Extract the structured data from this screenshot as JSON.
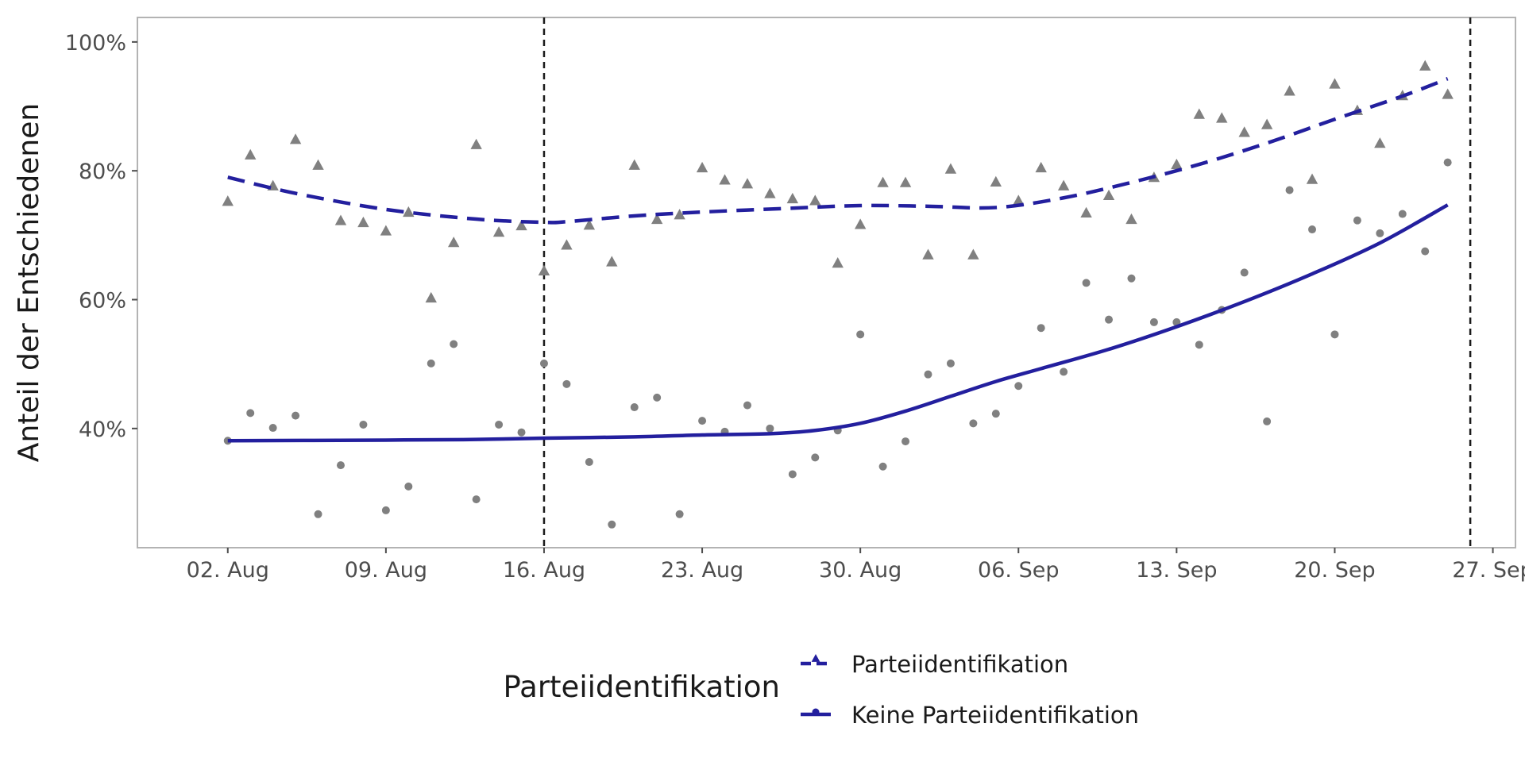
{
  "chart_data": {
    "type": "scatter",
    "title": "",
    "xlabel": "",
    "ylabel": "Anteil der Entschiedenen",
    "x_ticks": [
      "02. Aug",
      "09. Aug",
      "16. Aug",
      "23. Aug",
      "30. Aug",
      "06. Sep",
      "13. Sep",
      "20. Sep",
      "27. Sep"
    ],
    "y_ticks": [
      "40%",
      "60%",
      "80%",
      "100%"
    ],
    "xlim": [
      "2020-07-29",
      "2020-09-28"
    ],
    "ylim": [
      21.5,
      103.8
    ],
    "grid": false,
    "vlines": [
      "2020-08-16",
      "2020-09-26"
    ],
    "legend": {
      "title": "Parteiidentifikation",
      "position": "bottom",
      "entries": [
        "Parteiidentifikation",
        "Keine Parteiidentifikation"
      ]
    },
    "colors": {
      "points": "#808080",
      "lines": "#231f9e",
      "vlines": "#1a1a1a",
      "frame": "#b3b3b3"
    },
    "series": [
      {
        "name": "Parteiidentifikation",
        "marker": "triangle",
        "line_style": "dashed",
        "points": [
          [
            "2020-08-02",
            75.2
          ],
          [
            "2020-08-03",
            82.4
          ],
          [
            "2020-08-04",
            77.6
          ],
          [
            "2020-08-05",
            84.8
          ],
          [
            "2020-08-06",
            80.8
          ],
          [
            "2020-08-07",
            72.2
          ],
          [
            "2020-08-08",
            71.9
          ],
          [
            "2020-08-09",
            70.6
          ],
          [
            "2020-08-10",
            73.5
          ],
          [
            "2020-08-11",
            60.2
          ],
          [
            "2020-08-12",
            68.8
          ],
          [
            "2020-08-13",
            84.0
          ],
          [
            "2020-08-14",
            70.4
          ],
          [
            "2020-08-15",
            71.4
          ],
          [
            "2020-08-16",
            64.4
          ],
          [
            "2020-08-17",
            68.4
          ],
          [
            "2020-08-18",
            71.5
          ],
          [
            "2020-08-19",
            65.8
          ],
          [
            "2020-08-20",
            80.8
          ],
          [
            "2020-08-21",
            72.4
          ],
          [
            "2020-08-22",
            73.1
          ],
          [
            "2020-08-23",
            80.4
          ],
          [
            "2020-08-24",
            78.5
          ],
          [
            "2020-08-25",
            77.9
          ],
          [
            "2020-08-26",
            76.4
          ],
          [
            "2020-08-27",
            75.6
          ],
          [
            "2020-08-28",
            75.3
          ],
          [
            "2020-08-29",
            65.6
          ],
          [
            "2020-08-30",
            71.6
          ],
          [
            "2020-08-31",
            78.1
          ],
          [
            "2020-09-01",
            78.1
          ],
          [
            "2020-09-02",
            66.9
          ],
          [
            "2020-09-03",
            80.2
          ],
          [
            "2020-09-04",
            66.9
          ],
          [
            "2020-09-05",
            78.2
          ],
          [
            "2020-09-06",
            75.3
          ],
          [
            "2020-09-07",
            80.4
          ],
          [
            "2020-09-08",
            77.6
          ],
          [
            "2020-09-09",
            73.4
          ],
          [
            "2020-09-10",
            76.1
          ],
          [
            "2020-09-11",
            72.4
          ],
          [
            "2020-09-12",
            78.9
          ],
          [
            "2020-09-13",
            80.9
          ],
          [
            "2020-09-14",
            88.7
          ],
          [
            "2020-09-15",
            88.1
          ],
          [
            "2020-09-16",
            85.9
          ],
          [
            "2020-09-17",
            87.1
          ],
          [
            "2020-09-18",
            92.3
          ],
          [
            "2020-09-19",
            78.6
          ],
          [
            "2020-09-20",
            93.4
          ],
          [
            "2020-09-21",
            89.3
          ],
          [
            "2020-09-22",
            84.2
          ],
          [
            "2020-09-23",
            91.6
          ],
          [
            "2020-09-24",
            96.2
          ],
          [
            "2020-09-25",
            91.8
          ]
        ],
        "smooth": [
          [
            "2020-08-02",
            79.0
          ],
          [
            "2020-08-05",
            76.5
          ],
          [
            "2020-08-09",
            74.0
          ],
          [
            "2020-08-13",
            72.5
          ],
          [
            "2020-08-16",
            72.0
          ],
          [
            "2020-08-17",
            72.1
          ],
          [
            "2020-08-20",
            73.0
          ],
          [
            "2020-08-23",
            73.6
          ],
          [
            "2020-08-27",
            74.2
          ],
          [
            "2020-08-30",
            74.6
          ],
          [
            "2020-09-02",
            74.5
          ],
          [
            "2020-09-05",
            74.3
          ],
          [
            "2020-09-08",
            75.8
          ],
          [
            "2020-09-11",
            78.2
          ],
          [
            "2020-09-14",
            81.0
          ],
          [
            "2020-09-17",
            84.3
          ],
          [
            "2020-09-20",
            88.0
          ],
          [
            "2020-09-23",
            91.6
          ],
          [
            "2020-09-25",
            94.3
          ]
        ]
      },
      {
        "name": "Keine Parteiidentifikation",
        "marker": "circle",
        "line_style": "solid",
        "points": [
          [
            "2020-08-02",
            38.1
          ],
          [
            "2020-08-03",
            42.4
          ],
          [
            "2020-08-04",
            40.1
          ],
          [
            "2020-08-05",
            42.0
          ],
          [
            "2020-08-06",
            26.7
          ],
          [
            "2020-08-07",
            34.3
          ],
          [
            "2020-08-08",
            40.6
          ],
          [
            "2020-08-09",
            27.3
          ],
          [
            "2020-08-10",
            31.0
          ],
          [
            "2020-08-11",
            50.1
          ],
          [
            "2020-08-12",
            53.1
          ],
          [
            "2020-08-13",
            29.0
          ],
          [
            "2020-08-14",
            40.6
          ],
          [
            "2020-08-15",
            39.4
          ],
          [
            "2020-08-16",
            50.1
          ],
          [
            "2020-08-17",
            46.9
          ],
          [
            "2020-08-18",
            34.8
          ],
          [
            "2020-08-19",
            25.1
          ],
          [
            "2020-08-20",
            43.3
          ],
          [
            "2020-08-21",
            44.8
          ],
          [
            "2020-08-22",
            26.7
          ],
          [
            "2020-08-23",
            41.2
          ],
          [
            "2020-08-24",
            39.5
          ],
          [
            "2020-08-25",
            43.6
          ],
          [
            "2020-08-26",
            40.0
          ],
          [
            "2020-08-27",
            32.9
          ],
          [
            "2020-08-28",
            35.5
          ],
          [
            "2020-08-29",
            39.7
          ],
          [
            "2020-08-30",
            54.6
          ],
          [
            "2020-08-31",
            34.1
          ],
          [
            "2020-09-01",
            38.0
          ],
          [
            "2020-09-02",
            48.4
          ],
          [
            "2020-09-03",
            50.1
          ],
          [
            "2020-09-04",
            40.8
          ],
          [
            "2020-09-05",
            42.3
          ],
          [
            "2020-09-06",
            46.6
          ],
          [
            "2020-09-07",
            55.6
          ],
          [
            "2020-09-08",
            48.8
          ],
          [
            "2020-09-09",
            62.6
          ],
          [
            "2020-09-10",
            56.9
          ],
          [
            "2020-09-11",
            63.3
          ],
          [
            "2020-09-12",
            56.5
          ],
          [
            "2020-09-13",
            56.5
          ],
          [
            "2020-09-14",
            53.0
          ],
          [
            "2020-09-15",
            58.4
          ],
          [
            "2020-09-16",
            64.2
          ],
          [
            "2020-09-17",
            41.1
          ],
          [
            "2020-09-18",
            77.0
          ],
          [
            "2020-09-19",
            70.9
          ],
          [
            "2020-09-20",
            54.6
          ],
          [
            "2020-09-21",
            72.3
          ],
          [
            "2020-09-22",
            70.3
          ],
          [
            "2020-09-23",
            73.3
          ],
          [
            "2020-09-24",
            67.5
          ],
          [
            "2020-09-25",
            81.3
          ]
        ],
        "smooth": [
          [
            "2020-08-02",
            38.1
          ],
          [
            "2020-08-09",
            38.2
          ],
          [
            "2020-08-13",
            38.3
          ],
          [
            "2020-08-16",
            38.5
          ],
          [
            "2020-08-20",
            38.7
          ],
          [
            "2020-08-23",
            39.0
          ],
          [
            "2020-08-26",
            39.2
          ],
          [
            "2020-08-28",
            39.7
          ],
          [
            "2020-08-30",
            40.8
          ],
          [
            "2020-09-01",
            42.7
          ],
          [
            "2020-09-03",
            45.0
          ],
          [
            "2020-09-05",
            47.3
          ],
          [
            "2020-09-07",
            49.3
          ],
          [
            "2020-09-10",
            52.3
          ],
          [
            "2020-09-13",
            55.8
          ],
          [
            "2020-09-16",
            59.7
          ],
          [
            "2020-09-19",
            64.0
          ],
          [
            "2020-09-22",
            68.8
          ],
          [
            "2020-09-25",
            74.7
          ]
        ]
      }
    ]
  }
}
